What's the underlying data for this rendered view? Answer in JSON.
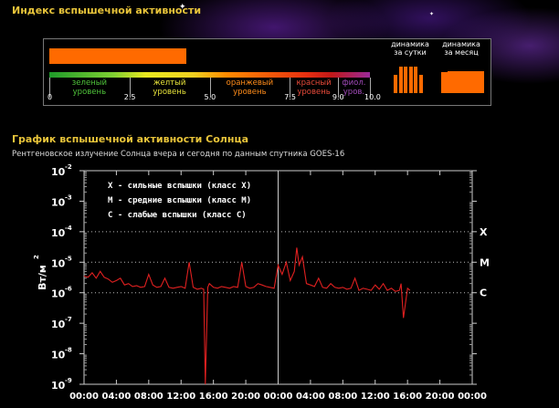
{
  "header": {
    "title": "Индекс вспышечной активности"
  },
  "index": {
    "value": 5.2,
    "max": 10,
    "segments": [
      {
        "line1": "зеленый",
        "line2": "уровень",
        "from": 0,
        "to": 2.5,
        "color": "#4fc33a"
      },
      {
        "line1": "желтый",
        "line2": "уровень",
        "from": 2.5,
        "to": 5.0,
        "color": "#e6e23a"
      },
      {
        "line1": "оранжевый",
        "line2": "уровень",
        "from": 5.0,
        "to": 7.5,
        "color": "#ff8c1a"
      },
      {
        "line1": "красный",
        "line2": "уровень",
        "from": 7.5,
        "to": 9.0,
        "color": "#e84a3a"
      },
      {
        "line1": "фиол.",
        "line2": "уров.",
        "from": 9.0,
        "to": 10.0,
        "color": "#a04ab8"
      }
    ],
    "ticks": [
      "0",
      "2.5",
      "5.0",
      "7.5",
      "9.0",
      "10.0"
    ],
    "bar_color": "#ff6a00",
    "dynamics": [
      {
        "line1": "динамика",
        "line2": "за сутки",
        "values": [
          0.55,
          0.8,
          0.8,
          0.8,
          0.8,
          0.55
        ]
      },
      {
        "line1": "динамика",
        "line2": "за месяц",
        "values": [
          0.65,
          0.65,
          0.68,
          0.68,
          0.68,
          0.68,
          0.68,
          0.68,
          0.68,
          0.68,
          0.68,
          0.68,
          0.68
        ]
      }
    ]
  },
  "section": {
    "title": "График вспышечной активности Солнца",
    "subtitle": "Рентгеновское излучение Солнца вчера и сегодня по данным спутника GOES-16"
  },
  "chart_data": {
    "type": "line",
    "ylabel_base": "Вт/м",
    "ylabel_exp": "2",
    "ylim": [
      1e-09,
      0.01
    ],
    "yscale": "log",
    "ytick_exponents": [
      "-2",
      "-3",
      "-4",
      "-5",
      "-6",
      "-7",
      "-8",
      "-9"
    ],
    "xticks": [
      "00:00",
      "04:00",
      "08:00",
      "12:00",
      "16:00",
      "20:00",
      "00:00",
      "04:00",
      "08:00",
      "12:00",
      "16:00",
      "20:00",
      "00:00"
    ],
    "xlim_hours": [
      0,
      48
    ],
    "day_boundary_hour": 24,
    "class_levels": [
      {
        "label": "X",
        "value": 0.0001
      },
      {
        "label": "M",
        "value": 1e-05
      },
      {
        "label": "C",
        "value": 1e-06
      }
    ],
    "legend": [
      "X - сильные вспышки (класс X)",
      "M - средние вспышки (класс M)",
      "C - слабые вспышки (класс C)"
    ],
    "legend_placement": "top-left",
    "line_color": "#e02020",
    "series": [
      {
        "x": [
          0,
          0.5,
          1,
          1.5,
          2,
          2.5,
          3,
          3.5,
          4,
          4.5,
          5,
          5.5,
          6,
          6.5,
          7,
          7.5,
          8,
          8.5,
          9,
          9.5,
          10,
          10.5,
          11,
          11.5,
          12,
          12.5,
          13,
          13.5,
          14,
          14.5,
          14.8,
          15,
          15.3,
          15.5,
          16,
          16.5,
          17,
          17.5,
          18,
          18.5,
          19,
          19.5,
          20,
          20.5,
          21,
          21.5,
          22,
          22.5,
          23,
          23.5,
          24,
          24.5,
          25,
          25.5,
          26,
          26.3,
          26.6,
          27,
          27.5,
          28,
          28.5,
          29,
          29.5,
          30,
          30.5,
          31,
          31.5,
          32,
          32.5,
          33,
          33.5,
          34,
          34.5,
          35,
          35.5,
          36,
          36.5,
          37,
          37.5,
          38,
          38.5,
          39,
          39.2,
          39.5,
          40,
          40.3
        ],
        "y": [
          3.5e-06,
          3.2e-06,
          4.5e-06,
          3e-06,
          5e-06,
          3.2e-06,
          2.8e-06,
          2.2e-06,
          2.5e-06,
          3e-06,
          1.8e-06,
          2e-06,
          1.6e-06,
          1.7e-06,
          1.5e-06,
          1.6e-06,
          4e-06,
          1.8e-06,
          1.5e-06,
          1.6e-06,
          3e-06,
          1.5e-06,
          1.4e-06,
          1.5e-06,
          1.6e-06,
          1.4e-06,
          1e-05,
          1.5e-06,
          1.3e-06,
          1.4e-06,
          1.3e-06,
          1e-09,
          1.5e-06,
          2e-06,
          1.5e-06,
          1.4e-06,
          1.6e-06,
          1.5e-06,
          1.4e-06,
          1.6e-06,
          1.5e-06,
          1e-05,
          1.6e-06,
          1.4e-06,
          1.5e-06,
          2e-06,
          1.8e-06,
          1.6e-06,
          1.5e-06,
          1.4e-06,
          8e-06,
          4e-06,
          1e-05,
          2.5e-06,
          5e-06,
          3e-05,
          8e-06,
          1.5e-05,
          2e-06,
          1.8e-06,
          1.6e-06,
          3e-06,
          1.5e-06,
          1.4e-06,
          2e-06,
          1.5e-06,
          1.4e-06,
          1.5e-06,
          1.3e-06,
          1.4e-06,
          3e-06,
          1.2e-06,
          1.4e-06,
          1.3e-06,
          1.2e-06,
          1.8e-06,
          1.3e-06,
          2e-06,
          1.2e-06,
          1.4e-06,
          1.1e-06,
          1.2e-06,
          2e-06,
          1.5e-07,
          1.4e-06,
          1.2e-06
        ]
      }
    ]
  }
}
